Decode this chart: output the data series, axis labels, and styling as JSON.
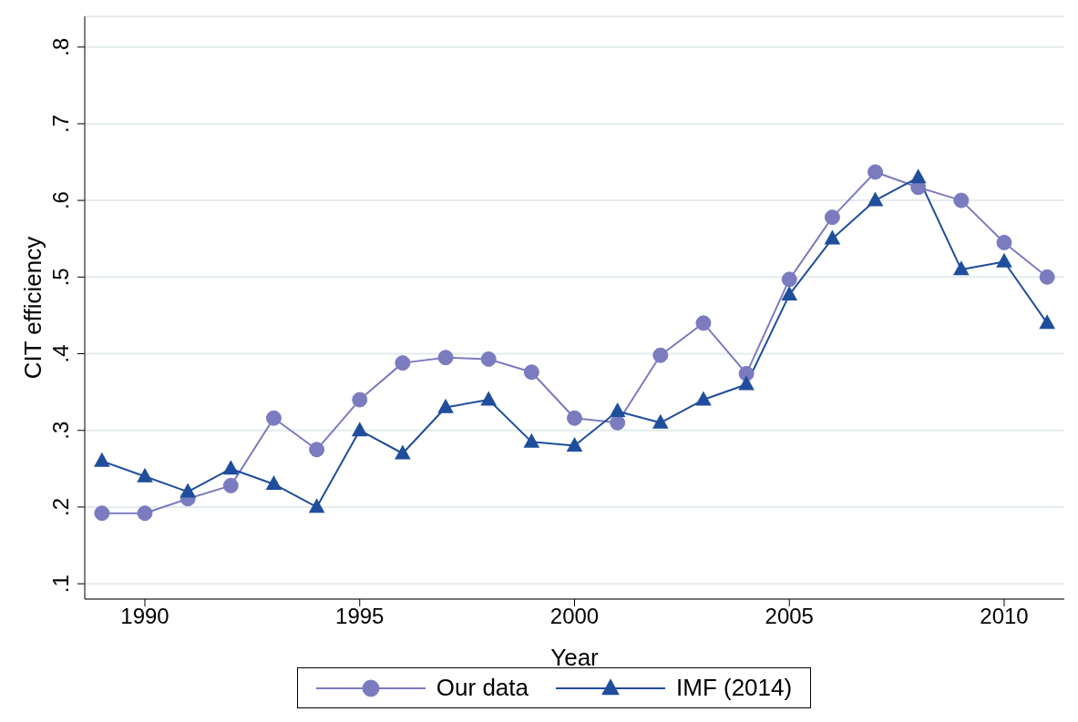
{
  "chart_data": {
    "type": "line",
    "xlabel": "Year",
    "ylabel": "CIT efficiency",
    "x": [
      1989,
      1990,
      1991,
      1992,
      1993,
      1994,
      1995,
      1996,
      1997,
      1998,
      1999,
      2000,
      2001,
      2002,
      2003,
      2004,
      2005,
      2006,
      2007,
      2008,
      2009,
      2010,
      2011
    ],
    "series": [
      {
        "name": "Our data",
        "color": "#7b7bc0",
        "marker": "circle",
        "values": [
          0.192,
          0.192,
          0.211,
          0.228,
          0.316,
          0.275,
          0.34,
          0.388,
          0.395,
          0.393,
          0.376,
          0.316,
          0.31,
          0.398,
          0.44,
          0.374,
          0.497,
          0.578,
          0.637,
          0.617,
          0.6,
          0.545,
          0.5
        ]
      },
      {
        "name": "IMF (2014)",
        "color": "#1f4e9c",
        "marker": "triangle",
        "values": [
          0.26,
          0.24,
          0.22,
          0.25,
          0.23,
          0.2,
          0.3,
          0.27,
          0.33,
          0.34,
          0.285,
          0.28,
          0.325,
          0.31,
          0.34,
          0.36,
          0.477,
          0.55,
          0.6,
          0.63,
          0.51,
          0.52,
          0.44
        ]
      }
    ],
    "xlim": [
      1988.6,
      2011.4
    ],
    "xticks": [
      1990,
      1995,
      2000,
      2005,
      2010
    ],
    "ylim": [
      0.08,
      0.84
    ],
    "yticks": [
      {
        "value": 0.1,
        "label": ".1"
      },
      {
        "value": 0.2,
        "label": ".2"
      },
      {
        "value": 0.3,
        "label": ".3"
      },
      {
        "value": 0.4,
        "label": ".4"
      },
      {
        "value": 0.5,
        "label": ".5"
      },
      {
        "value": 0.6,
        "label": ".6"
      },
      {
        "value": 0.7,
        "label": ".7"
      },
      {
        "value": 0.8,
        "label": ".8"
      }
    ],
    "grid": "y",
    "legend": "bottom",
    "line_style": "solid"
  }
}
